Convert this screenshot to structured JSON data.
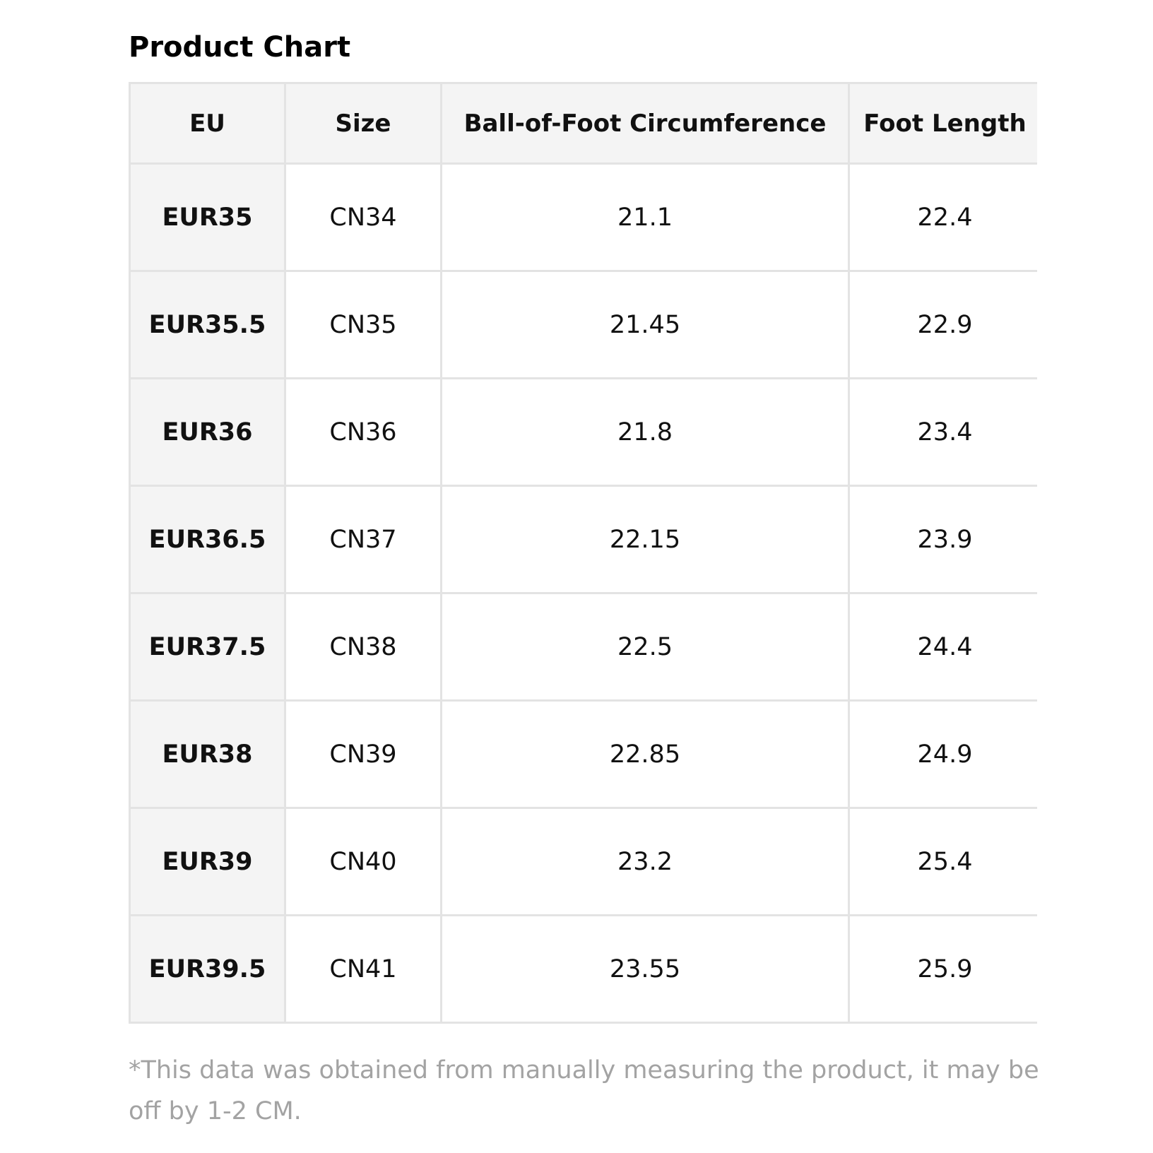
{
  "title": "Product Chart",
  "table": {
    "headers": {
      "eu": "EU",
      "size": "Size",
      "ball": "Ball-of-Foot Circumference",
      "foot": "Foot Length"
    },
    "rows": [
      {
        "eu": "EUR35",
        "size": "CN34",
        "ball": "21.1",
        "foot": "22.4"
      },
      {
        "eu": "EUR35.5",
        "size": "CN35",
        "ball": "21.45",
        "foot": "22.9"
      },
      {
        "eu": "EUR36",
        "size": "CN36",
        "ball": "21.8",
        "foot": "23.4"
      },
      {
        "eu": "EUR36.5",
        "size": "CN37",
        "ball": "22.15",
        "foot": "23.9"
      },
      {
        "eu": "EUR37.5",
        "size": "CN38",
        "ball": "22.5",
        "foot": "24.4"
      },
      {
        "eu": "EUR38",
        "size": "CN39",
        "ball": "22.85",
        "foot": "24.9"
      },
      {
        "eu": "EUR39",
        "size": "CN40",
        "ball": "23.2",
        "foot": "25.4"
      },
      {
        "eu": "EUR39.5",
        "size": "CN41",
        "ball": "23.55",
        "foot": "25.9"
      }
    ]
  },
  "note": "*This data was obtained from manually measuring the product, it may be off by 1-2 CM.",
  "colors": {
    "header_bg": "#f4f4f4",
    "border": "#e3e3e3",
    "note_text": "#a3a3a3"
  }
}
